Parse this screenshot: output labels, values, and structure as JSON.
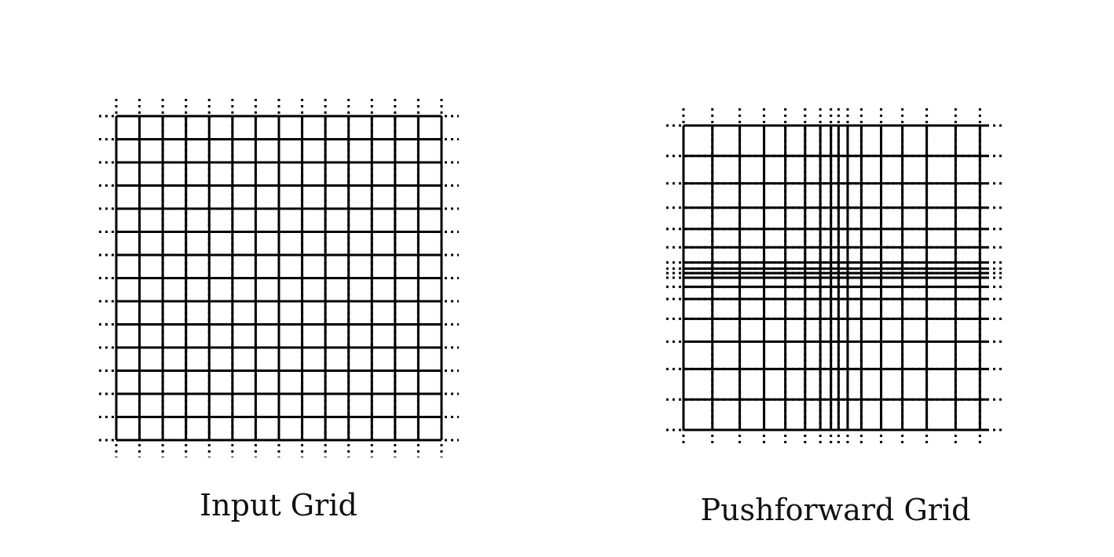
{
  "panels": [
    {
      "title": "Input Grid",
      "vertical_lines": [
        -7,
        -6,
        -5,
        -4,
        -3,
        -2,
        -1,
        0,
        1,
        2,
        3,
        4,
        5,
        6,
        7
      ],
      "horizontal_lines": [
        -7,
        -6,
        -5,
        -4,
        -3,
        -2,
        -1,
        0,
        1,
        2,
        3,
        4,
        5,
        6,
        7
      ],
      "domain": [
        -7,
        7
      ]
    },
    {
      "title": "Pushforward Grid",
      "vertical_lines": [
        -1.0,
        -0.81,
        -0.63,
        -0.47,
        -0.33,
        -0.2,
        -0.1,
        -0.03,
        0.02,
        0.08,
        0.17,
        0.3,
        0.44,
        0.6,
        0.79,
        0.95
      ],
      "horizontal_lines": [
        -1.0,
        -0.8,
        -0.62,
        -0.46,
        -0.32,
        -0.2,
        -0.1,
        -0.06,
        -0.03,
        0.0,
        0.06,
        0.14,
        0.27,
        0.42,
        0.6,
        0.8,
        1.0
      ],
      "domain": [
        -1.0,
        1.0
      ]
    }
  ],
  "colors": {
    "line": "#000000",
    "background": "#ffffff"
  }
}
